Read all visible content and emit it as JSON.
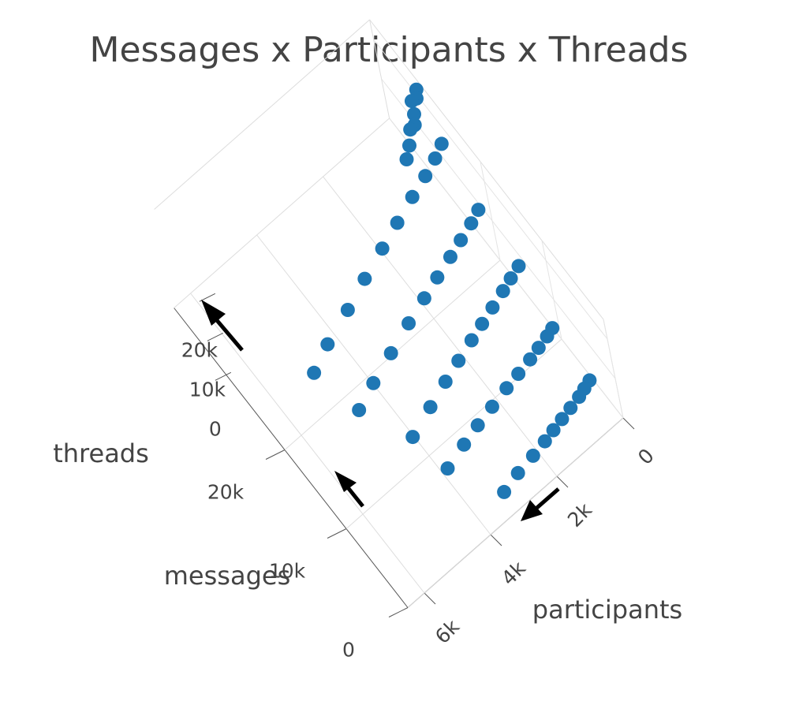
{
  "chart_data": {
    "type": "scatter3d",
    "title": "Messages x Participants x Threads",
    "xlabel": "participants",
    "ylabel": "messages",
    "zlabel": "threads",
    "color": "#1f77b4",
    "grid": true,
    "xlim": [
      0,
      6500
    ],
    "ylim": [
      0,
      38000
    ],
    "zlim": [
      0,
      25000
    ],
    "xticks": [
      {
        "value": 0,
        "label": "0"
      },
      {
        "value": 2000,
        "label": "2k"
      },
      {
        "value": 4000,
        "label": "4k"
      },
      {
        "value": 6000,
        "label": "6k"
      }
    ],
    "yticks": [
      {
        "value": 0,
        "label": "0"
      },
      {
        "value": 10000,
        "label": "10k"
      },
      {
        "value": 20000,
        "label": "20k"
      }
    ],
    "zticks": [
      {
        "value": 0,
        "label": "0"
      },
      {
        "value": 10000,
        "label": "10k"
      },
      {
        "value": 20000,
        "label": "20k"
      }
    ],
    "x": [
      200,
      400,
      600,
      900,
      1200,
      1500,
      1800,
      2200,
      2700,
      3200,
      300,
      500,
      800,
      1100,
      1500,
      1900,
      2400,
      2900,
      3400,
      4000,
      200,
      500,
      800,
      1200,
      1600,
      2000,
      2500,
      3000,
      3600,
      4300,
      300,
      600,
      1000,
      1400,
      1900,
      2400,
      3000,
      3700,
      4400,
      5000,
      200,
      500,
      900,
      1400,
      2000,
      2600,
      3300,
      4000,
      4800,
      5400,
      100,
      200,
      300,
      400,
      500,
      600,
      800,
      1000
    ],
    "y": [
      4000,
      3800,
      3600,
      3400,
      3200,
      3000,
      2800,
      2600,
      2400,
      2000,
      9000,
      8800,
      8600,
      8400,
      8200,
      8000,
      7700,
      7400,
      7000,
      6500,
      14500,
      14200,
      13900,
      13500,
      13100,
      12700,
      12200,
      11700,
      11000,
      10200,
      20000,
      19600,
      19200,
      18800,
      18300,
      17800,
      17200,
      16400,
      15600,
      14800,
      26000,
      25500,
      25000,
      24500,
      23800,
      23100,
      22300,
      21400,
      20500,
      19600,
      30000,
      29500,
      29800,
      29000,
      28500,
      28800,
      28000,
      27500
    ],
    "z": [
      3000,
      2800,
      2600,
      2400,
      2200,
      2000,
      1800,
      1500,
      1200,
      900,
      7000,
      6800,
      6500,
      6200,
      5900,
      5600,
      5200,
      4800,
      4400,
      3800,
      11000,
      10700,
      10300,
      9900,
      9500,
      9100,
      8600,
      8000,
      7400,
      6600,
      15000,
      14600,
      14100,
      13600,
      13100,
      12500,
      11800,
      11000,
      10200,
      9400,
      19000,
      18500,
      18000,
      17400,
      16700,
      16000,
      15100,
      14200,
      13200,
      12200,
      24000,
      23500,
      23000,
      22000,
      21000,
      20000,
      19000,
      18000
    ]
  }
}
